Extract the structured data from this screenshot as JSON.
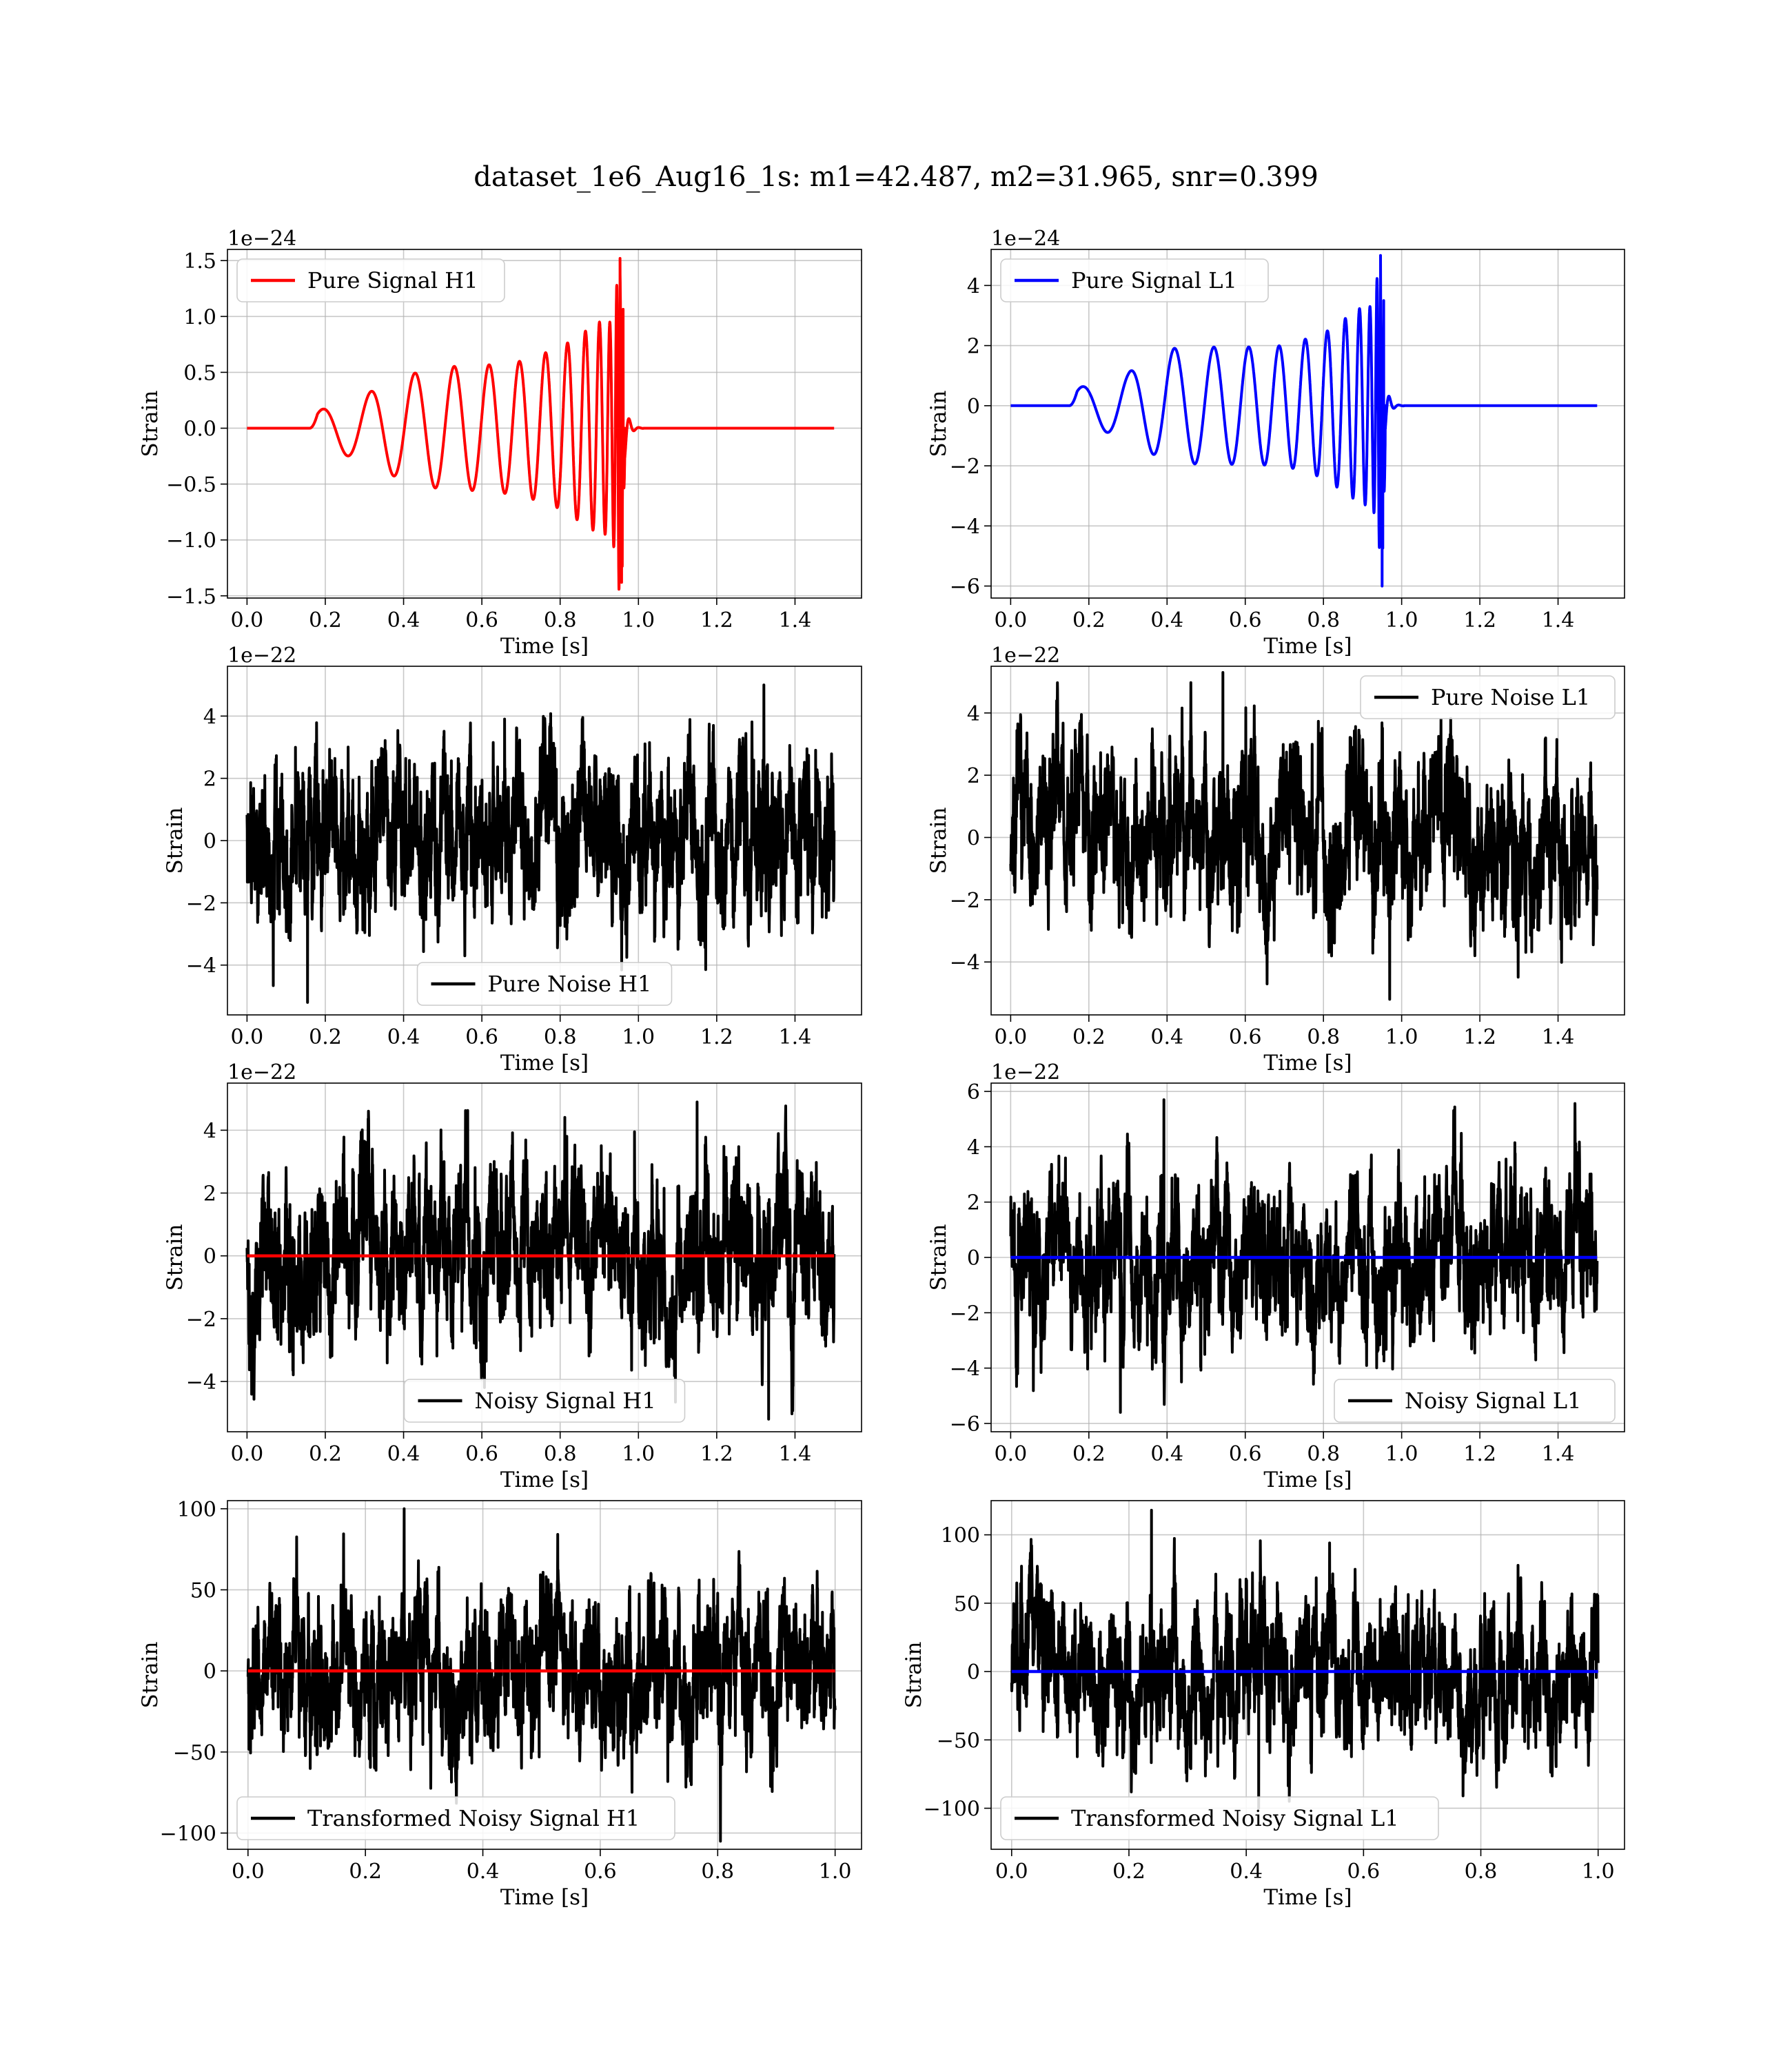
{
  "figure": {
    "title": "dataset_1e6_Aug16_1s: m1=42.487, m2=31.965, snr=0.399"
  },
  "chart_data": [
    {
      "id": "h1-pure-signal",
      "type": "line",
      "xlabel": "Time [s]",
      "ylabel": "Strain",
      "offset_text": "1e−24",
      "xlim": [
        -0.05,
        1.57
      ],
      "ylim": [
        -1.52,
        1.6
      ],
      "xticks": [
        0.0,
        0.2,
        0.4,
        0.6,
        0.8,
        1.0,
        1.2,
        1.4
      ],
      "xtick_labels": [
        "0.0",
        "0.2",
        "0.4",
        "0.6",
        "0.8",
        "1.0",
        "1.2",
        "1.4"
      ],
      "yticks": [
        -1.5,
        -1.0,
        -0.5,
        0.0,
        0.5,
        1.0,
        1.5
      ],
      "ytick_labels": [
        "−1.5",
        "−1.0",
        "−0.5",
        "0.0",
        "0.5",
        "1.0",
        "1.5"
      ],
      "grid": true,
      "legend_position": "upper-left",
      "series": [
        {
          "name": "Pure Signal H1",
          "color": "#ff0000",
          "kind": "chirp",
          "t_start": 0.0,
          "t_end": 1.5,
          "onset": 0.16,
          "merger": 0.953,
          "envelope": [
            [
              0.16,
              0.13
            ],
            [
              0.3,
              0.3
            ],
            [
              0.4,
              0.47
            ],
            [
              0.5,
              0.55
            ],
            [
              0.6,
              0.56
            ],
            [
              0.7,
              0.6
            ],
            [
              0.8,
              0.72
            ],
            [
              0.9,
              0.95
            ],
            [
              0.95,
              1.52
            ],
            [
              0.96,
              -1.38
            ]
          ],
          "trough_end": -1.38,
          "peak": 1.52
        }
      ]
    },
    {
      "id": "l1-pure-signal",
      "type": "line",
      "xlabel": "Time [s]",
      "ylabel": "Strain",
      "offset_text": "1e−24",
      "xlim": [
        -0.05,
        1.57
      ],
      "ylim": [
        -6.4,
        5.2
      ],
      "xticks": [
        0.0,
        0.2,
        0.4,
        0.6,
        0.8,
        1.0,
        1.2,
        1.4
      ],
      "xtick_labels": [
        "0.0",
        "0.2",
        "0.4",
        "0.6",
        "0.8",
        "1.0",
        "1.2",
        "1.4"
      ],
      "yticks": [
        -6,
        -4,
        -2,
        0,
        2,
        4
      ],
      "ytick_labels": [
        "−6",
        "−4",
        "−2",
        "0",
        "2",
        "4"
      ],
      "grid": true,
      "legend_position": "upper-left",
      "series": [
        {
          "name": "Pure Signal L1",
          "color": "#0000ff",
          "kind": "chirp",
          "t_start": 0.0,
          "t_end": 1.5,
          "onset": 0.15,
          "merger": 0.946,
          "envelope": [
            [
              0.15,
              0.5
            ],
            [
              0.3,
              1.1
            ],
            [
              0.4,
              1.9
            ],
            [
              0.5,
              1.95
            ],
            [
              0.6,
              1.95
            ],
            [
              0.7,
              2.0
            ],
            [
              0.8,
              2.4
            ],
            [
              0.9,
              3.3
            ],
            [
              0.94,
              5.0
            ],
            [
              0.95,
              -6.0
            ]
          ],
          "trough_end": -6.0,
          "peak": 5.0
        }
      ]
    },
    {
      "id": "h1-pure-noise",
      "type": "line",
      "xlabel": "Time [s]",
      "ylabel": "Strain",
      "offset_text": "1e−22",
      "xlim": [
        -0.05,
        1.57
      ],
      "ylim": [
        -5.6,
        5.6
      ],
      "xticks": [
        0.0,
        0.2,
        0.4,
        0.6,
        0.8,
        1.0,
        1.2,
        1.4
      ],
      "xtick_labels": [
        "0.0",
        "0.2",
        "0.4",
        "0.6",
        "0.8",
        "1.0",
        "1.2",
        "1.4"
      ],
      "yticks": [
        -4,
        -2,
        0,
        2,
        4
      ],
      "ytick_labels": [
        "−4",
        "−2",
        "0",
        "2",
        "4"
      ],
      "grid": true,
      "legend_position": "lower-center",
      "series": [
        {
          "name": "Pure Noise H1",
          "color": "#000000",
          "kind": "noise",
          "t_start": 0.0,
          "t_end": 1.5,
          "amplitude": 1.5,
          "max": 5.0,
          "min": -5.2,
          "seed": 11
        }
      ]
    },
    {
      "id": "l1-pure-noise",
      "type": "line",
      "xlabel": "Time [s]",
      "ylabel": "Strain",
      "offset_text": "1e−22",
      "xlim": [
        -0.05,
        1.57
      ],
      "ylim": [
        -5.7,
        5.5
      ],
      "xticks": [
        0.0,
        0.2,
        0.4,
        0.6,
        0.8,
        1.0,
        1.2,
        1.4
      ],
      "xtick_labels": [
        "0.0",
        "0.2",
        "0.4",
        "0.6",
        "0.8",
        "1.0",
        "1.2",
        "1.4"
      ],
      "yticks": [
        -4,
        -2,
        0,
        2,
        4
      ],
      "ytick_labels": [
        "−4",
        "−2",
        "0",
        "2",
        "4"
      ],
      "grid": true,
      "legend_position": "upper-right",
      "series": [
        {
          "name": "Pure Noise L1",
          "color": "#000000",
          "kind": "noise",
          "t_start": 0.0,
          "t_end": 1.5,
          "amplitude": 1.5,
          "max": 5.3,
          "min": -5.2,
          "seed": 23
        }
      ]
    },
    {
      "id": "h1-noisy-signal",
      "type": "line",
      "xlabel": "Time [s]",
      "ylabel": "Strain",
      "offset_text": "1e−22",
      "xlim": [
        -0.05,
        1.57
      ],
      "ylim": [
        -5.6,
        5.5
      ],
      "xticks": [
        0.0,
        0.2,
        0.4,
        0.6,
        0.8,
        1.0,
        1.2,
        1.4
      ],
      "xtick_labels": [
        "0.0",
        "0.2",
        "0.4",
        "0.6",
        "0.8",
        "1.0",
        "1.2",
        "1.4"
      ],
      "yticks": [
        -4,
        -2,
        0,
        2,
        4
      ],
      "ytick_labels": [
        "−4",
        "−2",
        "0",
        "2",
        "4"
      ],
      "grid": true,
      "legend_position": "lower-center",
      "series": [
        {
          "name": "Noisy Signal H1",
          "color": "#000000",
          "kind": "noise",
          "t_start": 0.0,
          "t_end": 1.5,
          "amplitude": 1.5,
          "max": 4.9,
          "min": -5.2,
          "seed": 37
        },
        {
          "name": "",
          "color": "#ff0000",
          "kind": "flat",
          "t_start": 0.0,
          "t_end": 1.5,
          "value": 0.0
        }
      ]
    },
    {
      "id": "l1-noisy-signal",
      "type": "line",
      "xlabel": "Time [s]",
      "ylabel": "Strain",
      "offset_text": "1e−22",
      "xlim": [
        -0.05,
        1.57
      ],
      "ylim": [
        -6.3,
        6.3
      ],
      "xticks": [
        0.0,
        0.2,
        0.4,
        0.6,
        0.8,
        1.0,
        1.2,
        1.4
      ],
      "xtick_labels": [
        "0.0",
        "0.2",
        "0.4",
        "0.6",
        "0.8",
        "1.0",
        "1.2",
        "1.4"
      ],
      "yticks": [
        -6,
        -4,
        -2,
        0,
        2,
        4,
        6
      ],
      "ytick_labels": [
        "−6",
        "−4",
        "−2",
        "0",
        "2",
        "4",
        "6"
      ],
      "grid": true,
      "legend_position": "lower-right",
      "series": [
        {
          "name": "Noisy Signal L1",
          "color": "#000000",
          "kind": "noise",
          "t_start": 0.0,
          "t_end": 1.5,
          "amplitude": 1.6,
          "max": 5.7,
          "min": -5.6,
          "seed": 41
        },
        {
          "name": "",
          "color": "#0000ff",
          "kind": "flat",
          "t_start": 0.0,
          "t_end": 1.5,
          "value": 0.0
        }
      ]
    },
    {
      "id": "h1-transformed",
      "type": "line",
      "xlabel": "Time [s]",
      "ylabel": "Strain",
      "offset_text": "",
      "xlim": [
        -0.035,
        1.045
      ],
      "ylim": [
        -110,
        105
      ],
      "xticks": [
        0.0,
        0.2,
        0.4,
        0.6,
        0.8,
        1.0
      ],
      "xtick_labels": [
        "0.0",
        "0.2",
        "0.4",
        "0.6",
        "0.8",
        "1.0"
      ],
      "yticks": [
        -100,
        -50,
        0,
        50,
        100
      ],
      "ytick_labels": [
        "−100",
        "−50",
        "0",
        "50",
        "100"
      ],
      "grid": true,
      "legend_position": "lower-left",
      "series": [
        {
          "name": "Transformed Noisy Signal H1",
          "color": "#000000",
          "kind": "noise",
          "t_start": 0.0,
          "t_end": 1.0,
          "amplitude": 28,
          "max": 100,
          "min": -105,
          "seed": 53
        },
        {
          "name": "",
          "color": "#ff0000",
          "kind": "flat",
          "t_start": 0.0,
          "t_end": 1.0,
          "value": 0.0
        }
      ]
    },
    {
      "id": "l1-transformed",
      "type": "line",
      "xlabel": "Time [s]",
      "ylabel": "Strain",
      "offset_text": "",
      "xlim": [
        -0.035,
        1.045
      ],
      "ylim": [
        -130,
        125
      ],
      "xticks": [
        0.0,
        0.2,
        0.4,
        0.6,
        0.8,
        1.0
      ],
      "xtick_labels": [
        "0.0",
        "0.2",
        "0.4",
        "0.6",
        "0.8",
        "1.0"
      ],
      "yticks": [
        -100,
        -50,
        0,
        50,
        100
      ],
      "ytick_labels": [
        "−100",
        "−50",
        "0",
        "50",
        "100"
      ],
      "grid": true,
      "legend_position": "lower-left",
      "series": [
        {
          "name": "Transformed Noisy Signal L1",
          "color": "#000000",
          "kind": "noise",
          "t_start": 0.0,
          "t_end": 1.0,
          "amplitude": 30,
          "max": 118,
          "min": -100,
          "seed": 67
        },
        {
          "name": "",
          "color": "#0000ff",
          "kind": "flat",
          "t_start": 0.0,
          "t_end": 1.0,
          "value": 0.0
        }
      ]
    }
  ]
}
